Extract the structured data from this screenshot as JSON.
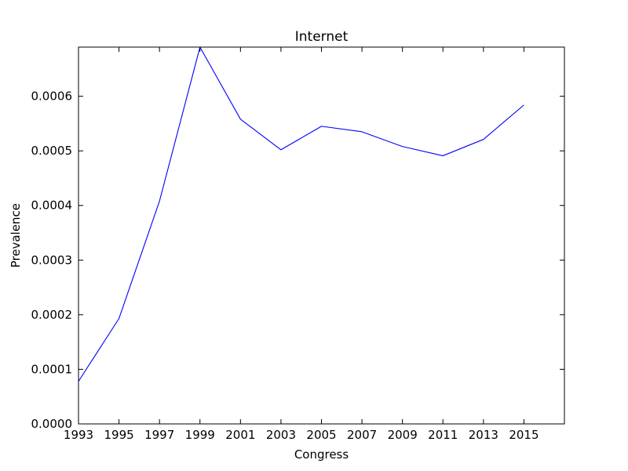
{
  "chart_data": {
    "type": "line",
    "title": "Internet",
    "xlabel": "Congress",
    "ylabel": "Prevalence",
    "xlim": [
      1993,
      2017
    ],
    "ylim": [
      0,
      0.00069
    ],
    "x_ticks": [
      1993,
      1995,
      1997,
      1999,
      2001,
      2003,
      2005,
      2007,
      2009,
      2011,
      2013,
      2015
    ],
    "x_tick_labels": [
      "1993",
      "1995",
      "1997",
      "1999",
      "2001",
      "2003",
      "2005",
      "2007",
      "2009",
      "2011",
      "2013",
      "2015"
    ],
    "y_ticks": [
      0,
      0.0001,
      0.0002,
      0.0003,
      0.0004,
      0.0005,
      0.0006
    ],
    "y_tick_labels": [
      "0.0000",
      "0.0001",
      "0.0002",
      "0.0003",
      "0.0004",
      "0.0005",
      "0.0006"
    ],
    "grid": false,
    "series": [
      {
        "color": "#0000ff",
        "x": [
          1993,
          1995,
          1997,
          1999,
          2001,
          2003,
          2005,
          2007,
          2009,
          2011,
          2013,
          2015
        ],
        "y": [
          7.8e-05,
          0.000193,
          0.000408,
          0.00069,
          0.000558,
          0.000502,
          0.000545,
          0.000535,
          0.000508,
          0.000491,
          0.000521,
          0.000584
        ]
      }
    ]
  }
}
